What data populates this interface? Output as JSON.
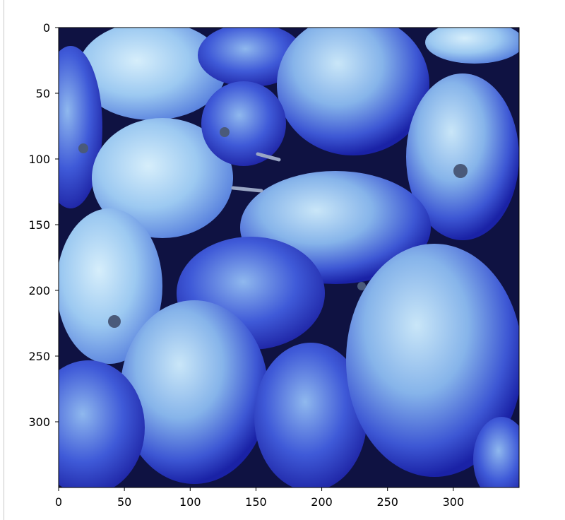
{
  "image": {
    "subject": "blue-tinted apples",
    "dominant_colors": [
      "#1d25b8",
      "#3a55d6",
      "#7fa9e6",
      "#b9dcf4",
      "#0e1240"
    ]
  },
  "axes": {
    "x_ticks": [
      "0",
      "50",
      "100",
      "150",
      "200",
      "250",
      "300"
    ],
    "y_ticks": [
      "0",
      "50",
      "100",
      "150",
      "200",
      "250",
      "300"
    ],
    "xlim": [
      0,
      350
    ],
    "ylim": [
      0,
      350
    ],
    "y_inverted": true,
    "grid": false
  }
}
